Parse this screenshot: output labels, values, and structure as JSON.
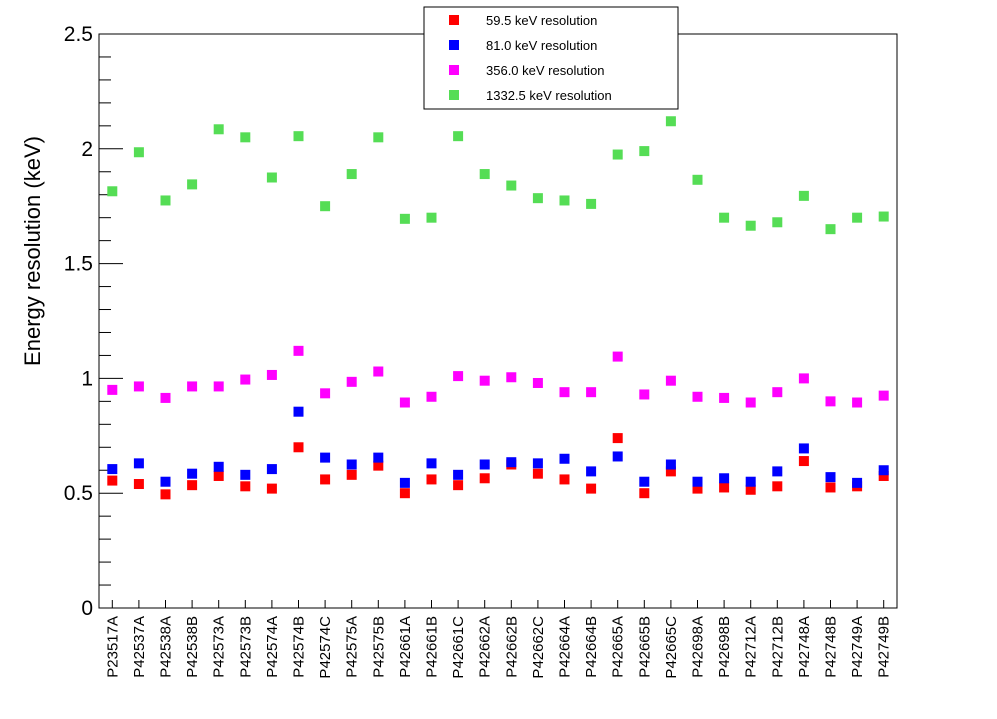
{
  "chart_data": {
    "type": "scatter",
    "title": "",
    "xlabel": "",
    "ylabel": "Energy resolution (keV)",
    "ylim": [
      0,
      2.5
    ],
    "yticks": [
      {
        "value": 0,
        "label": "0"
      },
      {
        "value": 0.5,
        "label": "0.5"
      },
      {
        "value": 1,
        "label": "1"
      },
      {
        "value": 1.5,
        "label": "1.5"
      },
      {
        "value": 2,
        "label": "2"
      },
      {
        "value": 2.5,
        "label": "2.5"
      }
    ],
    "legend_position": "top-center",
    "categories": [
      "P23517A",
      "P42537A",
      "P42538A",
      "P42538B",
      "P42573A",
      "P42573B",
      "P42574A",
      "P42574B",
      "P42574C",
      "P42575A",
      "P42575B",
      "P42661A",
      "P42661B",
      "P42661C",
      "P42662A",
      "P42662B",
      "P42662C",
      "P42664A",
      "P42664B",
      "P42665A",
      "P42665B",
      "P42665C",
      "P42698A",
      "P42698B",
      "P42712A",
      "P42712B",
      "P42748A",
      "P42748B",
      "P42749A",
      "P42749B"
    ],
    "series": [
      {
        "name": "59.5 keV resolution",
        "color": "#ff0000",
        "values": [
          0.555,
          0.54,
          0.495,
          0.535,
          0.575,
          0.53,
          0.52,
          0.7,
          0.56,
          0.58,
          0.62,
          0.5,
          0.56,
          0.535,
          0.565,
          0.625,
          0.585,
          0.56,
          0.52,
          0.74,
          0.5,
          0.595,
          0.52,
          0.525,
          0.515,
          0.53,
          0.64,
          0.525,
          0.53,
          0.575
        ]
      },
      {
        "name": "81.0 keV resolution",
        "color": "#0000ff",
        "values": [
          0.605,
          0.63,
          0.55,
          0.585,
          0.615,
          0.58,
          0.605,
          0.855,
          0.655,
          0.625,
          0.655,
          0.545,
          0.63,
          0.58,
          0.625,
          0.635,
          0.63,
          0.65,
          0.595,
          0.66,
          0.55,
          0.625,
          0.55,
          0.565,
          0.55,
          0.595,
          0.695,
          0.57,
          0.545,
          0.6
        ]
      },
      {
        "name": "356.0 keV resolution",
        "color": "#ff00ff",
        "values": [
          0.95,
          0.965,
          0.915,
          0.965,
          0.965,
          0.995,
          1.015,
          1.12,
          0.935,
          0.985,
          1.03,
          0.895,
          0.92,
          1.01,
          0.99,
          1.005,
          0.98,
          0.94,
          0.94,
          1.095,
          0.93,
          0.99,
          0.92,
          0.915,
          0.895,
          0.94,
          1.0,
          0.9,
          0.895,
          0.925
        ]
      },
      {
        "name": "1332.5 keV resolution",
        "color": "#55dd55",
        "values": [
          1.815,
          1.985,
          1.775,
          1.845,
          2.085,
          2.05,
          1.875,
          2.055,
          1.75,
          1.89,
          2.05,
          1.695,
          1.7,
          2.055,
          1.89,
          1.84,
          1.785,
          1.775,
          1.76,
          1.975,
          1.99,
          2.12,
          1.865,
          1.7,
          1.665,
          1.68,
          1.795,
          1.65,
          1.7,
          1.705
        ]
      }
    ]
  }
}
